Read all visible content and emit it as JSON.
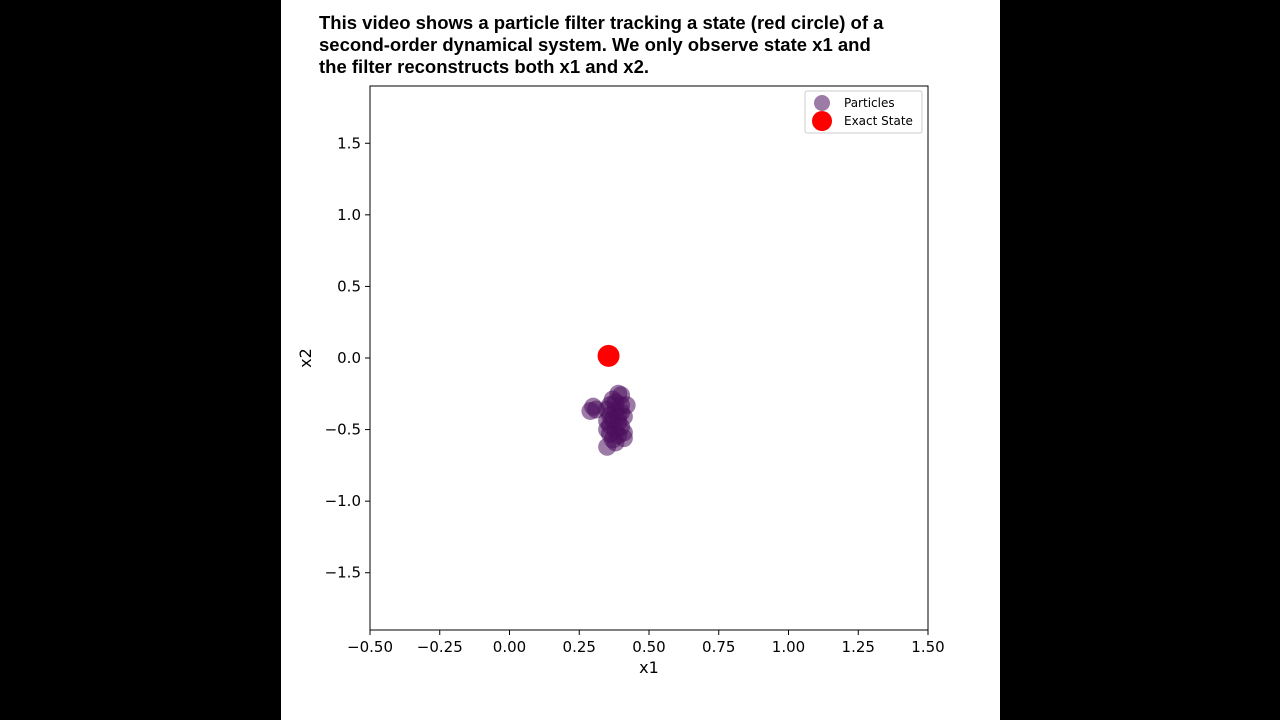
{
  "caption": {
    "lines": [
      "This video shows a particle filter tracking a state (red circle) of a",
      "second-order dynamical system. We only observe state x1 and",
      "the filter reconstructs both x1 and x2."
    ]
  },
  "chart_data": {
    "type": "scatter",
    "title": "",
    "xlabel": "x1",
    "ylabel": "x2",
    "xlim": [
      -0.5,
      1.5
    ],
    "ylim": [
      -1.9,
      1.9
    ],
    "xticks": [
      -0.5,
      -0.25,
      0.0,
      0.25,
      0.5,
      0.75,
      1.0,
      1.25,
      1.5
    ],
    "xtick_labels": [
      "−0.50",
      "−0.25",
      "0.00",
      "0.25",
      "0.50",
      "0.75",
      "1.00",
      "1.25",
      "1.50"
    ],
    "yticks": [
      -1.5,
      -1.0,
      -0.5,
      0.0,
      0.5,
      1.0,
      1.5
    ],
    "ytick_labels": [
      "−1.5",
      "−1.0",
      "−0.5",
      "0.0",
      "0.5",
      "1.0",
      "1.5"
    ],
    "grid": false,
    "legend_position": "top-right",
    "series": [
      {
        "name": "Particles",
        "color": "#4b0f5c",
        "points": [
          [
            0.39,
            -0.25
          ],
          [
            0.4,
            -0.26
          ],
          [
            0.37,
            -0.29
          ],
          [
            0.38,
            -0.31
          ],
          [
            0.36,
            -0.33
          ],
          [
            0.4,
            -0.33
          ],
          [
            0.42,
            -0.33
          ],
          [
            0.3,
            -0.34
          ],
          [
            0.31,
            -0.36
          ],
          [
            0.29,
            -0.37
          ],
          [
            0.35,
            -0.36
          ],
          [
            0.38,
            -0.37
          ],
          [
            0.4,
            -0.38
          ],
          [
            0.36,
            -0.4
          ],
          [
            0.39,
            -0.41
          ],
          [
            0.41,
            -0.41
          ],
          [
            0.37,
            -0.43
          ],
          [
            0.35,
            -0.44
          ],
          [
            0.39,
            -0.45
          ],
          [
            0.36,
            -0.47
          ],
          [
            0.4,
            -0.48
          ],
          [
            0.35,
            -0.5
          ],
          [
            0.38,
            -0.51
          ],
          [
            0.41,
            -0.52
          ],
          [
            0.36,
            -0.53
          ],
          [
            0.39,
            -0.54
          ],
          [
            0.41,
            -0.56
          ],
          [
            0.37,
            -0.57
          ],
          [
            0.38,
            -0.59
          ],
          [
            0.35,
            -0.62
          ]
        ]
      },
      {
        "name": "Exact State",
        "color": "#ff0000",
        "points": [
          [
            0.355,
            0.015
          ]
        ]
      }
    ]
  }
}
